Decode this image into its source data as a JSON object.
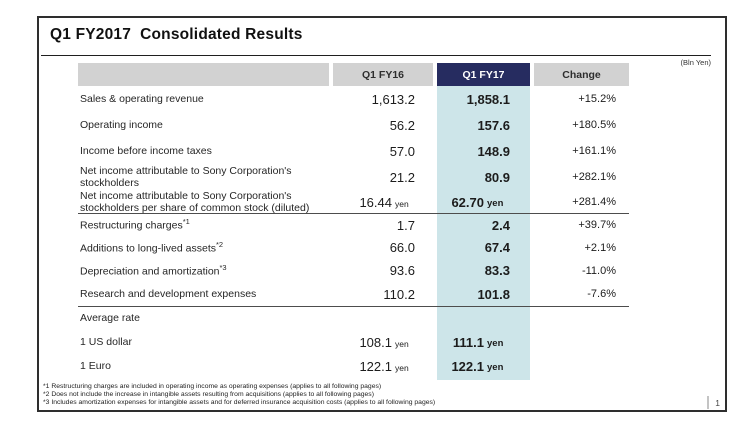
{
  "slide": {
    "title": "Q1 FY2017  Consolidated Results",
    "unit_note": "(Bln Yen)",
    "page_number": "1"
  },
  "colors": {
    "navy_header": "#262c60",
    "highlight_column": "#cde5e9",
    "header_gray": "#d2d2d2"
  },
  "table": {
    "columns": [
      "",
      "Q1 FY16",
      "Q1 FY17",
      "Change"
    ],
    "rows": [
      {
        "label": "Sales & operating revenue",
        "fy16": "1,613.2",
        "fy17": "1,858.1",
        "change": "+15.2%"
      },
      {
        "label": "Operating income",
        "fy16": "56.2",
        "fy17": "157.6",
        "change": "+180.5%"
      },
      {
        "label": "Income before income taxes",
        "fy16": "57.0",
        "fy17": "148.9",
        "change": "+161.1%"
      },
      {
        "label": "Net income attributable to Sony Corporation's stockholders",
        "fy16": "21.2",
        "fy17": "80.9",
        "change": "+282.1%"
      },
      {
        "label": "Net income attributable to Sony Corporation's stockholders per share of common stock (diluted)",
        "fy16": "16.44",
        "fy16u": "yen",
        "fy17": "62.70",
        "fy17u": "yen",
        "change": "+281.4%"
      },
      {
        "label": "Restructuring charges",
        "sup": "*1",
        "fy16": "1.7",
        "fy17": "2.4",
        "change": "+39.7%",
        "section_start": true
      },
      {
        "label": "Additions to long-lived assets",
        "sup": "*2",
        "fy16": "66.0",
        "fy17": "67.4",
        "change": "+2.1%"
      },
      {
        "label": "Depreciation and amortization",
        "sup": "*3",
        "fy16": "93.6",
        "fy17": "83.3",
        "change": "-11.0%"
      },
      {
        "label": "Research and development expenses",
        "fy16": "110.2",
        "fy17": "101.8",
        "change": "-7.6%"
      },
      {
        "label": "Average rate",
        "section_start": true
      },
      {
        "label": "1 US dollar",
        "fy16": "108.1",
        "fy16u": "yen",
        "fy17": "111.1",
        "fy17u": "yen"
      },
      {
        "label": "1 Euro",
        "fy16": "122.1",
        "fy16u": "yen",
        "fy17": "122.1",
        "fy17u": "yen"
      }
    ]
  },
  "footnotes": [
    "*1 Restructuring charges are included in operating income as operating expenses (applies to all following pages)",
    "*2 Does not include the increase in intangible assets resulting from acquisitions (applies to all following pages)",
    "*3 Includes amortization expenses for intangible assets and for deferred insurance acquisition costs (applies to all following pages)"
  ]
}
